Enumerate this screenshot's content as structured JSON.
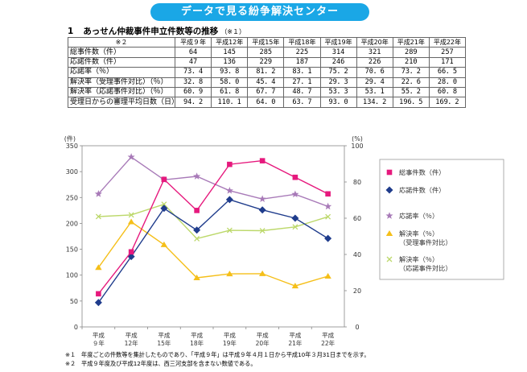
{
  "banner": "データで見る紛争解決センター",
  "heading": {
    "number": "1",
    "title": "あっせん仲裁事件申立件数等の推移",
    "note": "（※１）"
  },
  "table": {
    "corner": "※２",
    "years": [
      "平成９年",
      "平成12年",
      "平成15年",
      "平成18年",
      "平成19年",
      "平成20年",
      "平成21年",
      "平成22年"
    ],
    "rows": [
      {
        "label": "総事件数（件）",
        "values": [
          "64",
          "145",
          "285",
          "225",
          "314",
          "321",
          "289",
          "257"
        ]
      },
      {
        "label": "応諾件数（件）",
        "values": [
          "47",
          "136",
          "229",
          "187",
          "246",
          "226",
          "210",
          "171"
        ]
      },
      {
        "label": "応諾率（％）",
        "values": [
          "73．4",
          "93．8",
          "81．2",
          "83．1",
          "75．2",
          "70．6",
          "73．2",
          "66．5"
        ]
      },
      {
        "label": "解決率（受理事件対比）（％）",
        "values": [
          "32．8",
          "58．0",
          "45．4",
          "27．1",
          "29．3",
          "29．4",
          "22．6",
          "28．0"
        ]
      },
      {
        "label": "解決率（応諾事件対比）（％）",
        "values": [
          "60．9",
          "61．8",
          "67．7",
          "48．7",
          "53．3",
          "53．1",
          "55．2",
          "60．8"
        ]
      },
      {
        "label": "受理日からの審理平均日数（日）",
        "values": [
          "94．2",
          "110．1",
          "64．0",
          "63．7",
          "93．0",
          "134．2",
          "196．5",
          "169．2"
        ]
      }
    ]
  },
  "chart_data": {
    "type": "line",
    "left_axis": {
      "unit_label": "(件)",
      "range": [
        0,
        350
      ],
      "ticks": [
        "0",
        "50",
        "100",
        "150",
        "200",
        "250",
        "300",
        "350"
      ]
    },
    "right_axis": {
      "unit_label": "(%)",
      "range": [
        0,
        100
      ],
      "ticks": [
        "0",
        "20",
        "40",
        "60",
        "80",
        "100"
      ]
    },
    "categories": [
      {
        "top": "平成",
        "bottom": "９年"
      },
      {
        "top": "平成",
        "bottom": "12年"
      },
      {
        "top": "平成",
        "bottom": "15年"
      },
      {
        "top": "平成",
        "bottom": "18年"
      },
      {
        "top": "平成",
        "bottom": "19年"
      },
      {
        "top": "平成",
        "bottom": "20年"
      },
      {
        "top": "平成",
        "bottom": "21年"
      },
      {
        "top": "平成",
        "bottom": "22年"
      }
    ],
    "series": [
      {
        "name": "総事件数（件）",
        "legend_lines": [
          "総事件数（件）"
        ],
        "axis": "left",
        "marker": "square",
        "color": "#e6197d",
        "values": [
          64,
          145,
          285,
          225,
          314,
          321,
          289,
          257
        ]
      },
      {
        "name": "応諾件数（件）",
        "legend_lines": [
          "応諾件数（件）"
        ],
        "axis": "left",
        "marker": "diamond",
        "color": "#1f3c8c",
        "values": [
          47,
          136,
          229,
          187,
          246,
          226,
          210,
          171
        ]
      },
      {
        "name": "応諾率（％）",
        "legend_lines": [
          "応諾率（％）"
        ],
        "axis": "right",
        "marker": "star",
        "color": "#a87ab8",
        "values": [
          73.4,
          93.8,
          81.2,
          83.1,
          75.2,
          70.6,
          73.2,
          66.5
        ]
      },
      {
        "name": "解決率（％）（受理事件対比）",
        "legend_lines": [
          "解決率（％）",
          "（受理事件対比）"
        ],
        "axis": "right",
        "marker": "triangle",
        "color": "#f5bf19",
        "values": [
          32.8,
          58.0,
          45.4,
          27.1,
          29.3,
          29.4,
          22.6,
          28.0
        ]
      },
      {
        "name": "解決率（％）（応諾事件対比）",
        "legend_lines": [
          "解決率（％）",
          "（応諾事件対比）"
        ],
        "axis": "right",
        "marker": "x",
        "color": "#bcd86a",
        "values": [
          60.9,
          61.8,
          67.7,
          48.7,
          53.3,
          53.1,
          55.2,
          60.8
        ]
      }
    ],
    "legend_position": "right",
    "grid": false
  },
  "footnotes": [
    {
      "key": "※１",
      "text": "年度ごとの件数等を集計したものであり、「平成９年」は平成９年４月１日から平成10年３月31日までを示す。"
    },
    {
      "key": "※２",
      "text": "平成９年度及び平成12年度は、西三河支部を含まない数値である。"
    }
  ]
}
